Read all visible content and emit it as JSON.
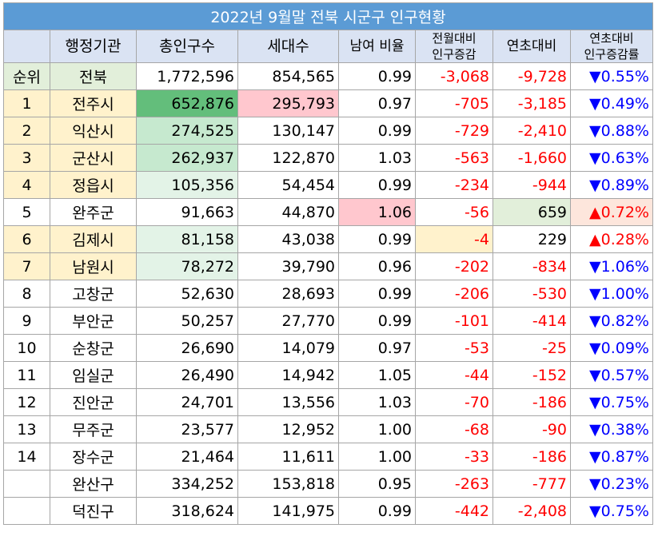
{
  "title": "2022년 9월말 전북 시군구 인구현황",
  "headers": [
    "",
    "행정기관",
    "총인구수",
    "세대수",
    "남여 비율",
    "전월대비\n인구증감",
    "연초대비",
    "연초대비\n인구증감률"
  ],
  "header_lines": {
    "mom": [
      "전월대비",
      "인구증감"
    ],
    "yoy_rate": [
      "연초대비",
      "인구증감률"
    ]
  },
  "total": {
    "rank": "순위",
    "name": "전북",
    "pop": "1,772,596",
    "households": "854,565",
    "ratio": "0.99",
    "mom": "-3,068",
    "ytd": "-9,728",
    "rate": "▼0.55%"
  },
  "rows": [
    {
      "rank": "1",
      "name": "전주시",
      "pop": "652,876",
      "households": "295,793",
      "ratio": "0.97",
      "mom": "-705",
      "ytd": "-3,185",
      "rate": "▼0.49%"
    },
    {
      "rank": "2",
      "name": "익산시",
      "pop": "274,525",
      "households": "130,147",
      "ratio": "0.99",
      "mom": "-729",
      "ytd": "-2,410",
      "rate": "▼0.88%"
    },
    {
      "rank": "3",
      "name": "군산시",
      "pop": "262,937",
      "households": "122,870",
      "ratio": "1.03",
      "mom": "-563",
      "ytd": "-1,660",
      "rate": "▼0.63%"
    },
    {
      "rank": "4",
      "name": "정읍시",
      "pop": "105,356",
      "households": "54,454",
      "ratio": "0.99",
      "mom": "-234",
      "ytd": "-944",
      "rate": "▼0.89%"
    },
    {
      "rank": "5",
      "name": "완주군",
      "pop": "91,663",
      "households": "44,870",
      "ratio": "1.06",
      "mom": "-56",
      "ytd": "659",
      "rate": "▲0.72%"
    },
    {
      "rank": "6",
      "name": "김제시",
      "pop": "81,158",
      "households": "43,038",
      "ratio": "0.99",
      "mom": "-4",
      "ytd": "229",
      "rate": "▲0.28%"
    },
    {
      "rank": "7",
      "name": "남원시",
      "pop": "78,272",
      "households": "39,790",
      "ratio": "0.96",
      "mom": "-202",
      "ytd": "-834",
      "rate": "▼1.06%"
    },
    {
      "rank": "8",
      "name": "고창군",
      "pop": "52,630",
      "households": "28,693",
      "ratio": "0.99",
      "mom": "-206",
      "ytd": "-530",
      "rate": "▼1.00%"
    },
    {
      "rank": "9",
      "name": "부안군",
      "pop": "50,257",
      "households": "27,770",
      "ratio": "0.99",
      "mom": "-101",
      "ytd": "-414",
      "rate": "▼0.82%"
    },
    {
      "rank": "10",
      "name": "순창군",
      "pop": "26,690",
      "households": "14,079",
      "ratio": "0.97",
      "mom": "-53",
      "ytd": "-25",
      "rate": "▼0.09%"
    },
    {
      "rank": "11",
      "name": "임실군",
      "pop": "26,490",
      "households": "14,942",
      "ratio": "1.05",
      "mom": "-44",
      "ytd": "-152",
      "rate": "▼0.57%"
    },
    {
      "rank": "12",
      "name": "진안군",
      "pop": "24,701",
      "households": "13,556",
      "ratio": "1.03",
      "mom": "-70",
      "ytd": "-186",
      "rate": "▼0.75%"
    },
    {
      "rank": "13",
      "name": "무주군",
      "pop": "23,577",
      "households": "12,952",
      "ratio": "1.00",
      "mom": "-68",
      "ytd": "-90",
      "rate": "▼0.38%"
    },
    {
      "rank": "14",
      "name": "장수군",
      "pop": "21,464",
      "households": "11,611",
      "ratio": "1.00",
      "mom": "-33",
      "ytd": "-186",
      "rate": "▼0.87%"
    },
    {
      "rank": "",
      "name": "완산구",
      "pop": "334,252",
      "households": "153,818",
      "ratio": "0.95",
      "mom": "-263",
      "ytd": "-777",
      "rate": "▼0.23%"
    },
    {
      "rank": "",
      "name": "덕진구",
      "pop": "318,624",
      "households": "141,975",
      "ratio": "0.99",
      "mom": "-442",
      "ytd": "-2,408",
      "rate": "▼0.75%"
    }
  ],
  "colors": {
    "title_bg": "#5b9bd5",
    "header_bg": "#dae3f3",
    "rank_highlight": "#fff2cc",
    "negative": "#ff0000",
    "down_arrow": "#0000ff",
    "up_arrow": "#ff0000"
  }
}
